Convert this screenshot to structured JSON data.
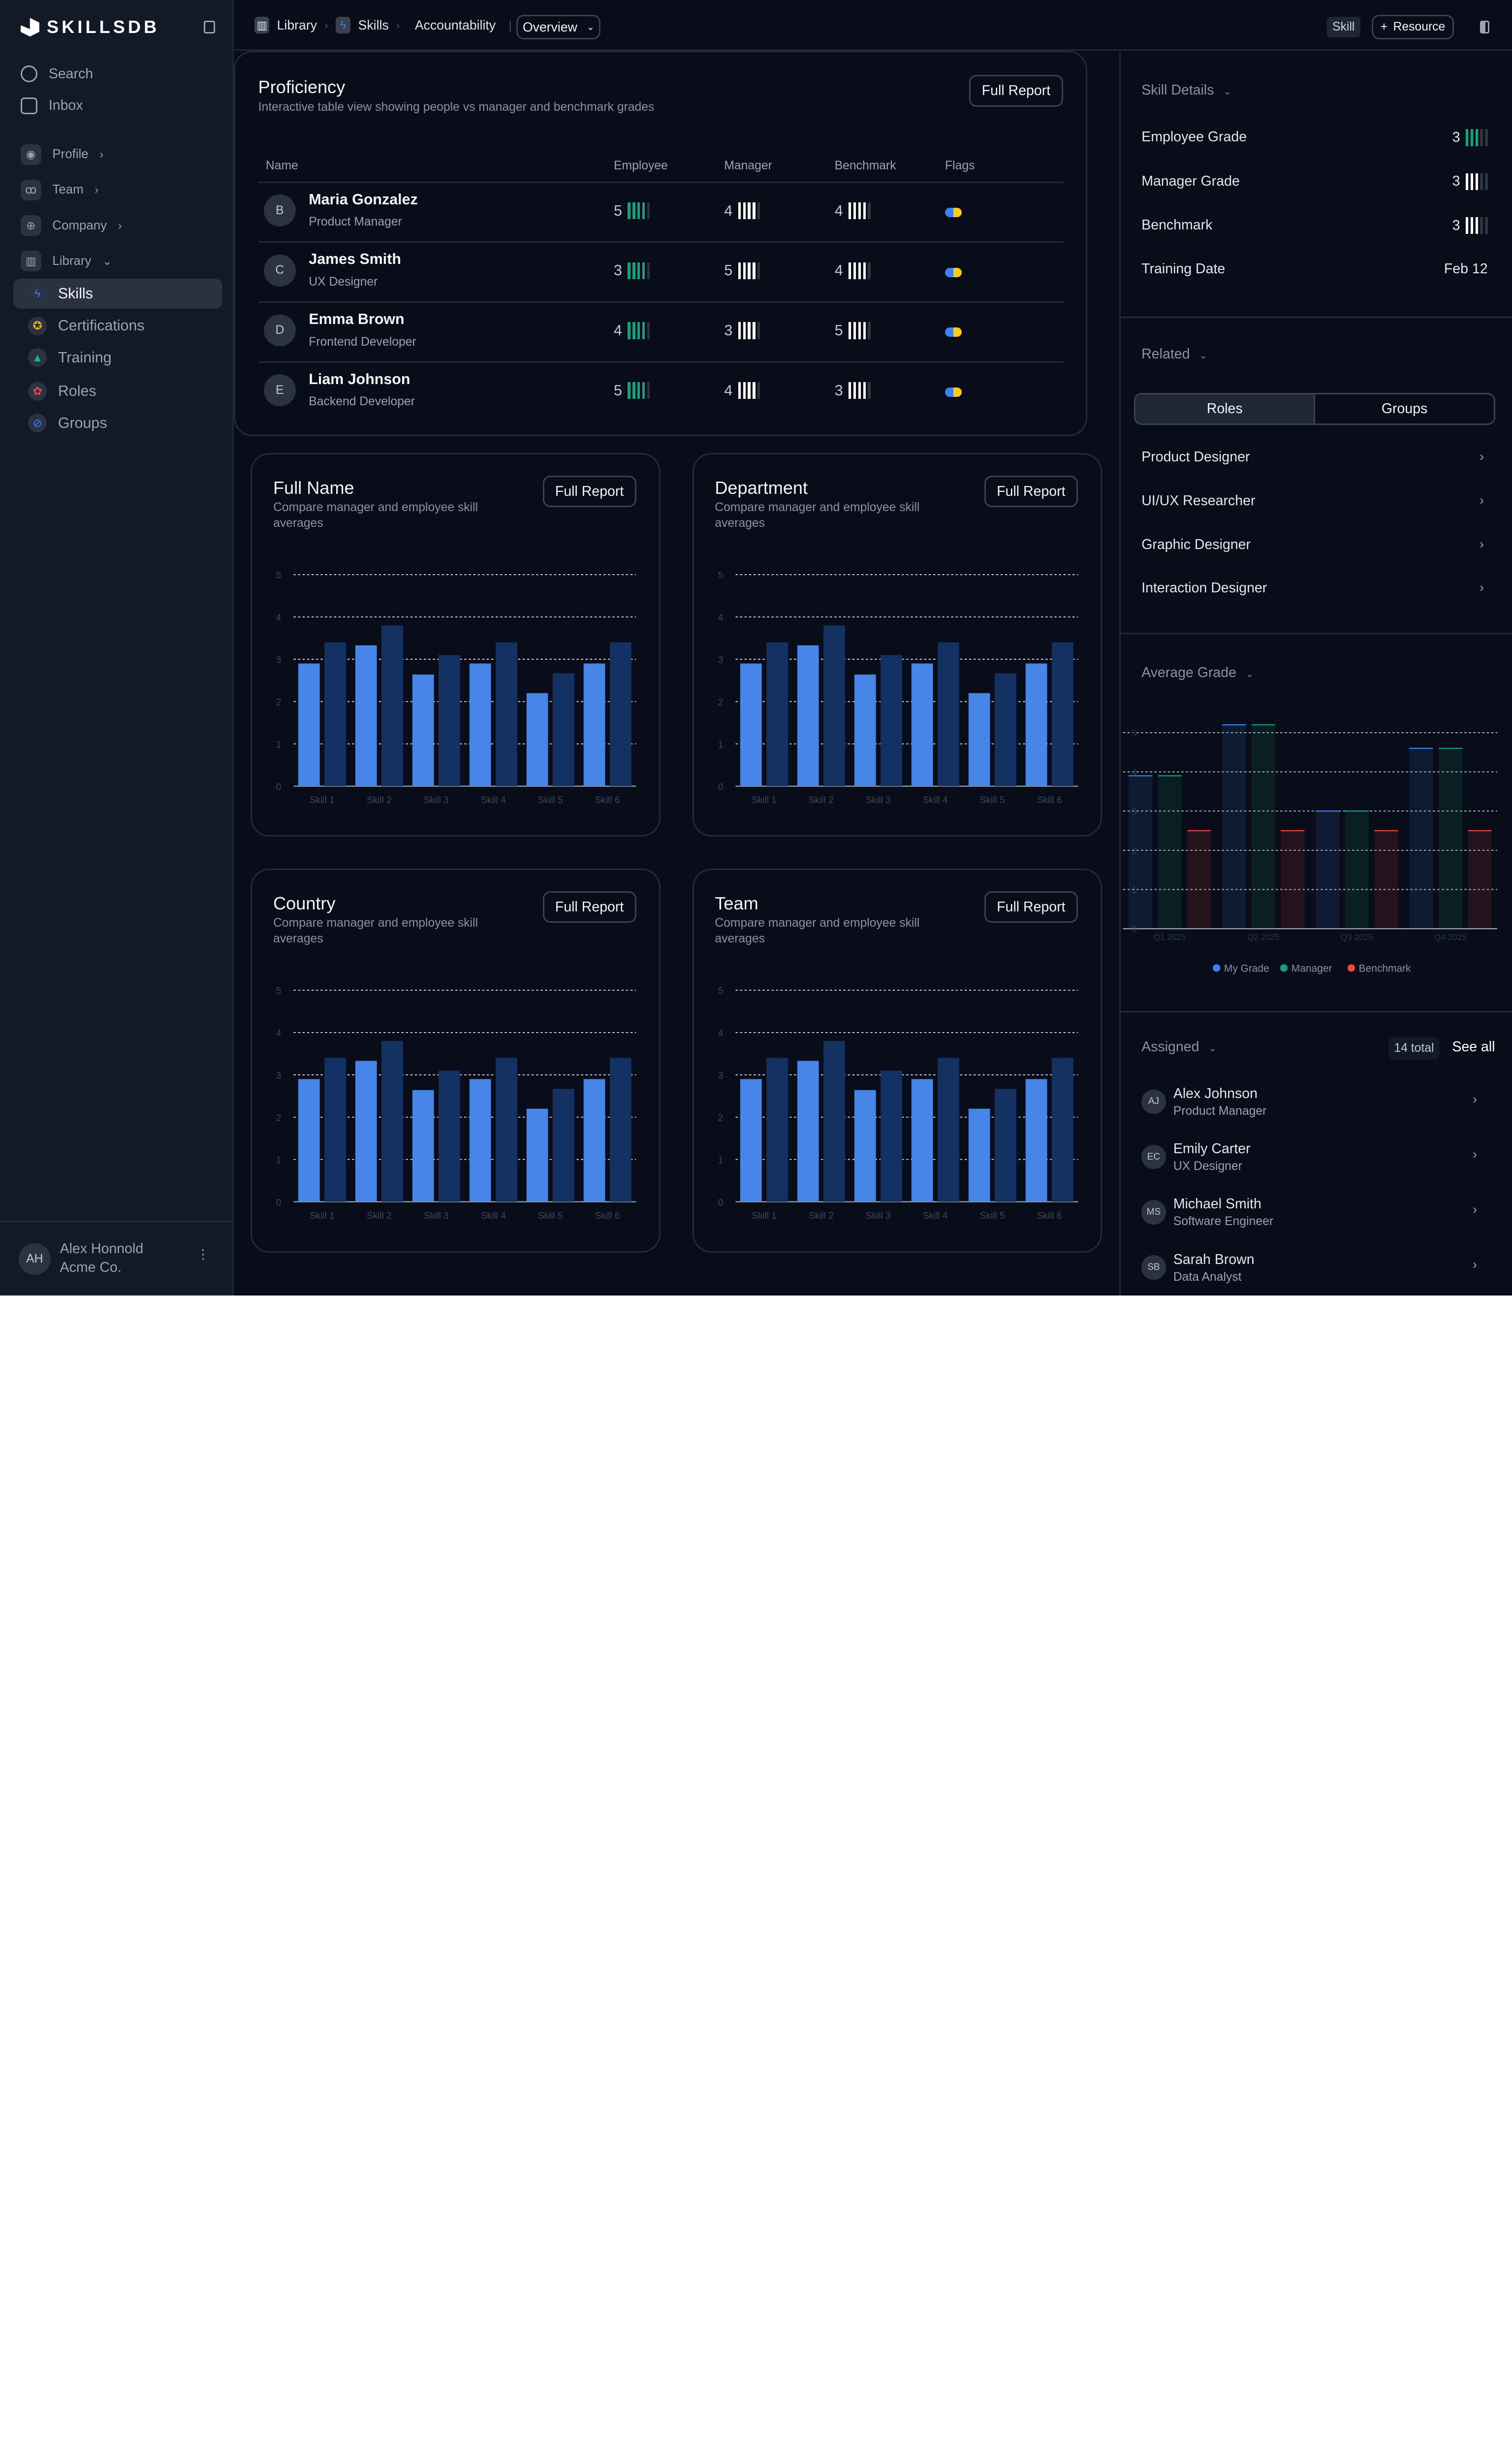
{
  "app": {
    "logo": "SKILLSDB"
  },
  "sidebar": {
    "top": [
      {
        "label": "Search",
        "icon": "compass-icon"
      },
      {
        "label": "Inbox",
        "icon": "inbox-icon"
      }
    ],
    "groups": [
      {
        "label": "Profile",
        "icon": "user-icon"
      },
      {
        "label": "Team",
        "icon": "users-icon"
      },
      {
        "label": "Company",
        "icon": "globe-icon"
      },
      {
        "label": "Library",
        "icon": "library-icon"
      }
    ],
    "library_items": [
      {
        "label": "Skills",
        "icon": "bolt-icon",
        "color": "#3b82f6",
        "active": true
      },
      {
        "label": "Certifications",
        "icon": "award-icon",
        "color": "#eab308"
      },
      {
        "label": "Training",
        "icon": "mountain-icon",
        "color": "#10b981"
      },
      {
        "label": "Roles",
        "icon": "roles-icon",
        "color": "#ef4444"
      },
      {
        "label": "Groups",
        "icon": "link-icon",
        "color": "#3b82f6"
      }
    ],
    "user": {
      "initials": "AH",
      "name": "Alex Honnold",
      "org": "Acme Co."
    }
  },
  "header": {
    "breadcrumb": [
      "Library",
      "Skills",
      "Accountability"
    ],
    "view": "Overview",
    "badge": "Skill",
    "resource_button": "Resource"
  },
  "proficiency": {
    "title": "Proficiency",
    "subtitle": "Interactive table view showing people vs manager and benchmark grades",
    "button": "Full Report",
    "columns": [
      "Name",
      "Employee",
      "Manager",
      "Benchmark",
      "Flags"
    ],
    "filled_bars": 4,
    "rows": [
      {
        "initial": "B",
        "name": "Maria Gonzalez",
        "role": "Product Manager",
        "employee": "5",
        "manager": "4",
        "benchmark": "4"
      },
      {
        "initial": "C",
        "name": "James Smith",
        "role": "UX Designer",
        "employee": "3",
        "manager": "5",
        "benchmark": "4"
      },
      {
        "initial": "D",
        "name": "Emma Brown",
        "role": "Frontend Developer",
        "employee": "4",
        "manager": "3",
        "benchmark": "5"
      },
      {
        "initial": "E",
        "name": "Liam Johnson",
        "role": "Backend Developer",
        "employee": "5",
        "manager": "4",
        "benchmark": "3"
      }
    ],
    "colors": {
      "employee": "#10a37f",
      "manager": "#ffffff",
      "flag": [
        "#3b82f6",
        "#facc15"
      ]
    }
  },
  "chart_cards": [
    {
      "title": "Full Name",
      "subtitle": "Compare manager and employee skill averages",
      "button": "Full Report"
    },
    {
      "title": "Department",
      "subtitle": "Compare manager and employee skill averages",
      "button": "Full Report"
    },
    {
      "title": "Country",
      "subtitle": "Compare manager and employee skill averages",
      "button": "Full Report"
    },
    {
      "title": "Team",
      "subtitle": "Compare manager and employee skill averages",
      "button": "Full Report"
    }
  ],
  "chart_data": [
    {
      "type": "bar",
      "categories": [
        "Skill 1",
        "Skill 2",
        "Skill 3",
        "Skill 4",
        "Skill 5",
        "Skill 6"
      ],
      "series": [
        {
          "values": [
            2.9,
            3.33,
            2.64,
            2.9,
            2.2,
            2.9
          ],
          "color": "#4785e8"
        },
        {
          "values": [
            3.4,
            3.8,
            3.1,
            3.4,
            2.67,
            3.4
          ],
          "color": "#143163"
        }
      ],
      "ylim": [
        0,
        5
      ],
      "yticks": [
        0,
        1,
        2,
        3,
        4,
        5
      ],
      "grid": true
    },
    {
      "type": "bar",
      "categories": [
        "Skill 1",
        "Skill 2",
        "Skill 3",
        "Skill 4",
        "Skill 5",
        "Skill 6"
      ],
      "series": [
        {
          "values": [
            2.9,
            3.33,
            2.64,
            2.9,
            2.2,
            2.9
          ],
          "color": "#4785e8"
        },
        {
          "values": [
            3.4,
            3.8,
            3.1,
            3.4,
            2.67,
            3.4
          ],
          "color": "#143163"
        }
      ],
      "ylim": [
        0,
        5
      ],
      "yticks": [
        0,
        1,
        2,
        3,
        4,
        5
      ],
      "grid": true
    },
    {
      "type": "bar",
      "categories": [
        "Skill 1",
        "Skill 2",
        "Skill 3",
        "Skill 4",
        "Skill 5",
        "Skill 6"
      ],
      "series": [
        {
          "values": [
            2.9,
            3.33,
            2.64,
            2.9,
            2.2,
            2.9
          ],
          "color": "#4785e8"
        },
        {
          "values": [
            3.4,
            3.8,
            3.1,
            3.4,
            2.67,
            3.4
          ],
          "color": "#143163"
        }
      ],
      "ylim": [
        0,
        5
      ],
      "yticks": [
        0,
        1,
        2,
        3,
        4,
        5
      ],
      "grid": true
    },
    {
      "type": "bar",
      "categories": [
        "Skill 1",
        "Skill 2",
        "Skill 3",
        "Skill 4",
        "Skill 5",
        "Skill 6"
      ],
      "series": [
        {
          "values": [
            2.9,
            3.33,
            2.64,
            2.9,
            2.2,
            2.9
          ],
          "color": "#4785e8"
        },
        {
          "values": [
            3.4,
            3.8,
            3.1,
            3.4,
            2.67,
            3.4
          ],
          "color": "#143163"
        }
      ],
      "ylim": [
        0,
        5
      ],
      "yticks": [
        0,
        1,
        2,
        3,
        4,
        5
      ],
      "grid": true
    },
    {
      "type": "bar",
      "title": "Average Grade",
      "categories": [
        "Q1 2025",
        "Q2 2025",
        "Q3 2025",
        "Q4 2025"
      ],
      "series": [
        {
          "name": "My Grade",
          "values": [
            3.9,
            5.2,
            3.0,
            4.6
          ],
          "color": "#3b82f6"
        },
        {
          "name": "Manager",
          "values": [
            3.9,
            5.2,
            3.0,
            4.6
          ],
          "color": "#10a37f"
        },
        {
          "name": "Benchmark",
          "values": [
            2.5,
            2.5,
            2.5,
            2.5
          ],
          "color": "#ef4444"
        }
      ],
      "ylim": [
        0,
        5.3
      ],
      "yticks": [
        0,
        1,
        2,
        3,
        4,
        5
      ],
      "grid": true,
      "legend": "bottom"
    }
  ],
  "skill_details": {
    "title": "Skill Details",
    "filled_bars": 3,
    "rows": [
      {
        "label": "Employee Grade",
        "value": "3",
        "bar_color": "#10a37f"
      },
      {
        "label": "Manager Grade",
        "value": "3",
        "bar_color": "#ffffff"
      },
      {
        "label": "Benchmark",
        "value": "3",
        "bar_color": "#ffffff"
      },
      {
        "label": "Training Date",
        "value": "Feb 12"
      }
    ]
  },
  "related": {
    "title": "Related",
    "tabs": [
      "Roles",
      "Groups"
    ],
    "active_tab": "Roles",
    "items": [
      "Product Designer",
      "UI/UX Researcher",
      "Graphic Designer",
      "Interaction Designer"
    ]
  },
  "average_grade": {
    "title": "Average Grade"
  },
  "assigned": {
    "title": "Assigned",
    "count": "14 total",
    "see_all": "See all",
    "people": [
      {
        "initials": "AJ",
        "name": "Alex Johnson",
        "role": "Product Manager"
      },
      {
        "initials": "EC",
        "name": "Emily Carter",
        "role": "UX Designer"
      },
      {
        "initials": "MS",
        "name": "Michael Smith",
        "role": "Software Engineer"
      },
      {
        "initials": "SB",
        "name": "Sarah Brown",
        "role": "Data Analyst"
      }
    ]
  }
}
